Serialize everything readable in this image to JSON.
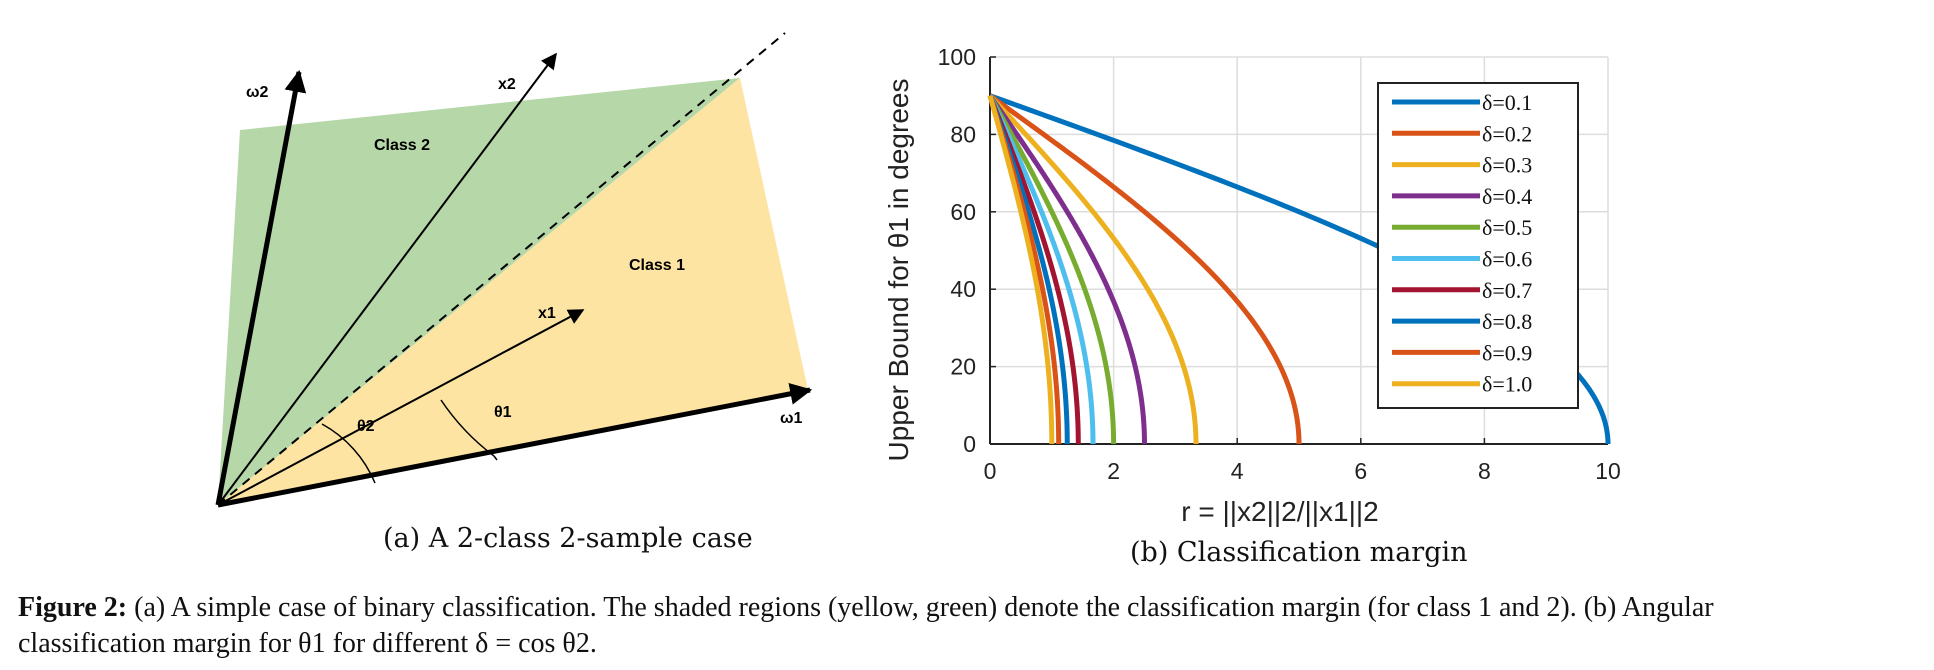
{
  "subfig_a": {
    "caption": "(a)  A 2-class 2-sample case",
    "labels": {
      "omega1": "ω1",
      "omega2": "ω2",
      "x1": "x1",
      "x2": "x2",
      "class1": "Class 1",
      "class2": "Class 2",
      "theta1": "θ1",
      "theta2": "θ2"
    },
    "colors": {
      "class1_fill": "#FDE4A2",
      "class2_fill": "#B6D7A8"
    }
  },
  "subfig_b": {
    "caption": "(b)  Classification margin"
  },
  "figure_caption": {
    "prefix": "Figure 2:",
    "line1": "(a) A simple case of binary classification. The shaded regions (yellow, green) denote the classification margin (for class 1 and 2). (b) Angular",
    "line2": "classification margin for θ1 for different δ = cos θ2."
  },
  "chart_data": {
    "type": "line",
    "ylabel": "Upper Bound for  θ1 in degrees",
    "xlabel": "r = ||x2||2/||x1||2",
    "xlim": [
      0,
      10
    ],
    "ylim": [
      0,
      100
    ],
    "xticks": [
      0,
      2,
      4,
      6,
      8,
      10
    ],
    "yticks": [
      0,
      20,
      40,
      60,
      80,
      100
    ],
    "grid": true,
    "legend_position": "top-right",
    "formula": "theta1_max = acos(r * delta) in degrees, r from 0 to 1/delta",
    "series": [
      {
        "name": "δ=0.1",
        "delta": 0.1,
        "color": "#0072BD"
      },
      {
        "name": "δ=0.2",
        "delta": 0.2,
        "color": "#D95319"
      },
      {
        "name": "δ=0.3",
        "delta": 0.3,
        "color": "#EDB120"
      },
      {
        "name": "δ=0.4",
        "delta": 0.4,
        "color": "#7E2F8E"
      },
      {
        "name": "δ=0.5",
        "delta": 0.5,
        "color": "#77AC30"
      },
      {
        "name": "δ=0.6",
        "delta": 0.6,
        "color": "#4DBEEE"
      },
      {
        "name": "δ=0.7",
        "delta": 0.7,
        "color": "#A2142F"
      },
      {
        "name": "δ=0.8",
        "delta": 0.8,
        "color": "#0072BD"
      },
      {
        "name": "δ=0.9",
        "delta": 0.9,
        "color": "#D95319"
      },
      {
        "name": "δ=1.0",
        "delta": 1.0,
        "color": "#EDB120"
      }
    ]
  }
}
